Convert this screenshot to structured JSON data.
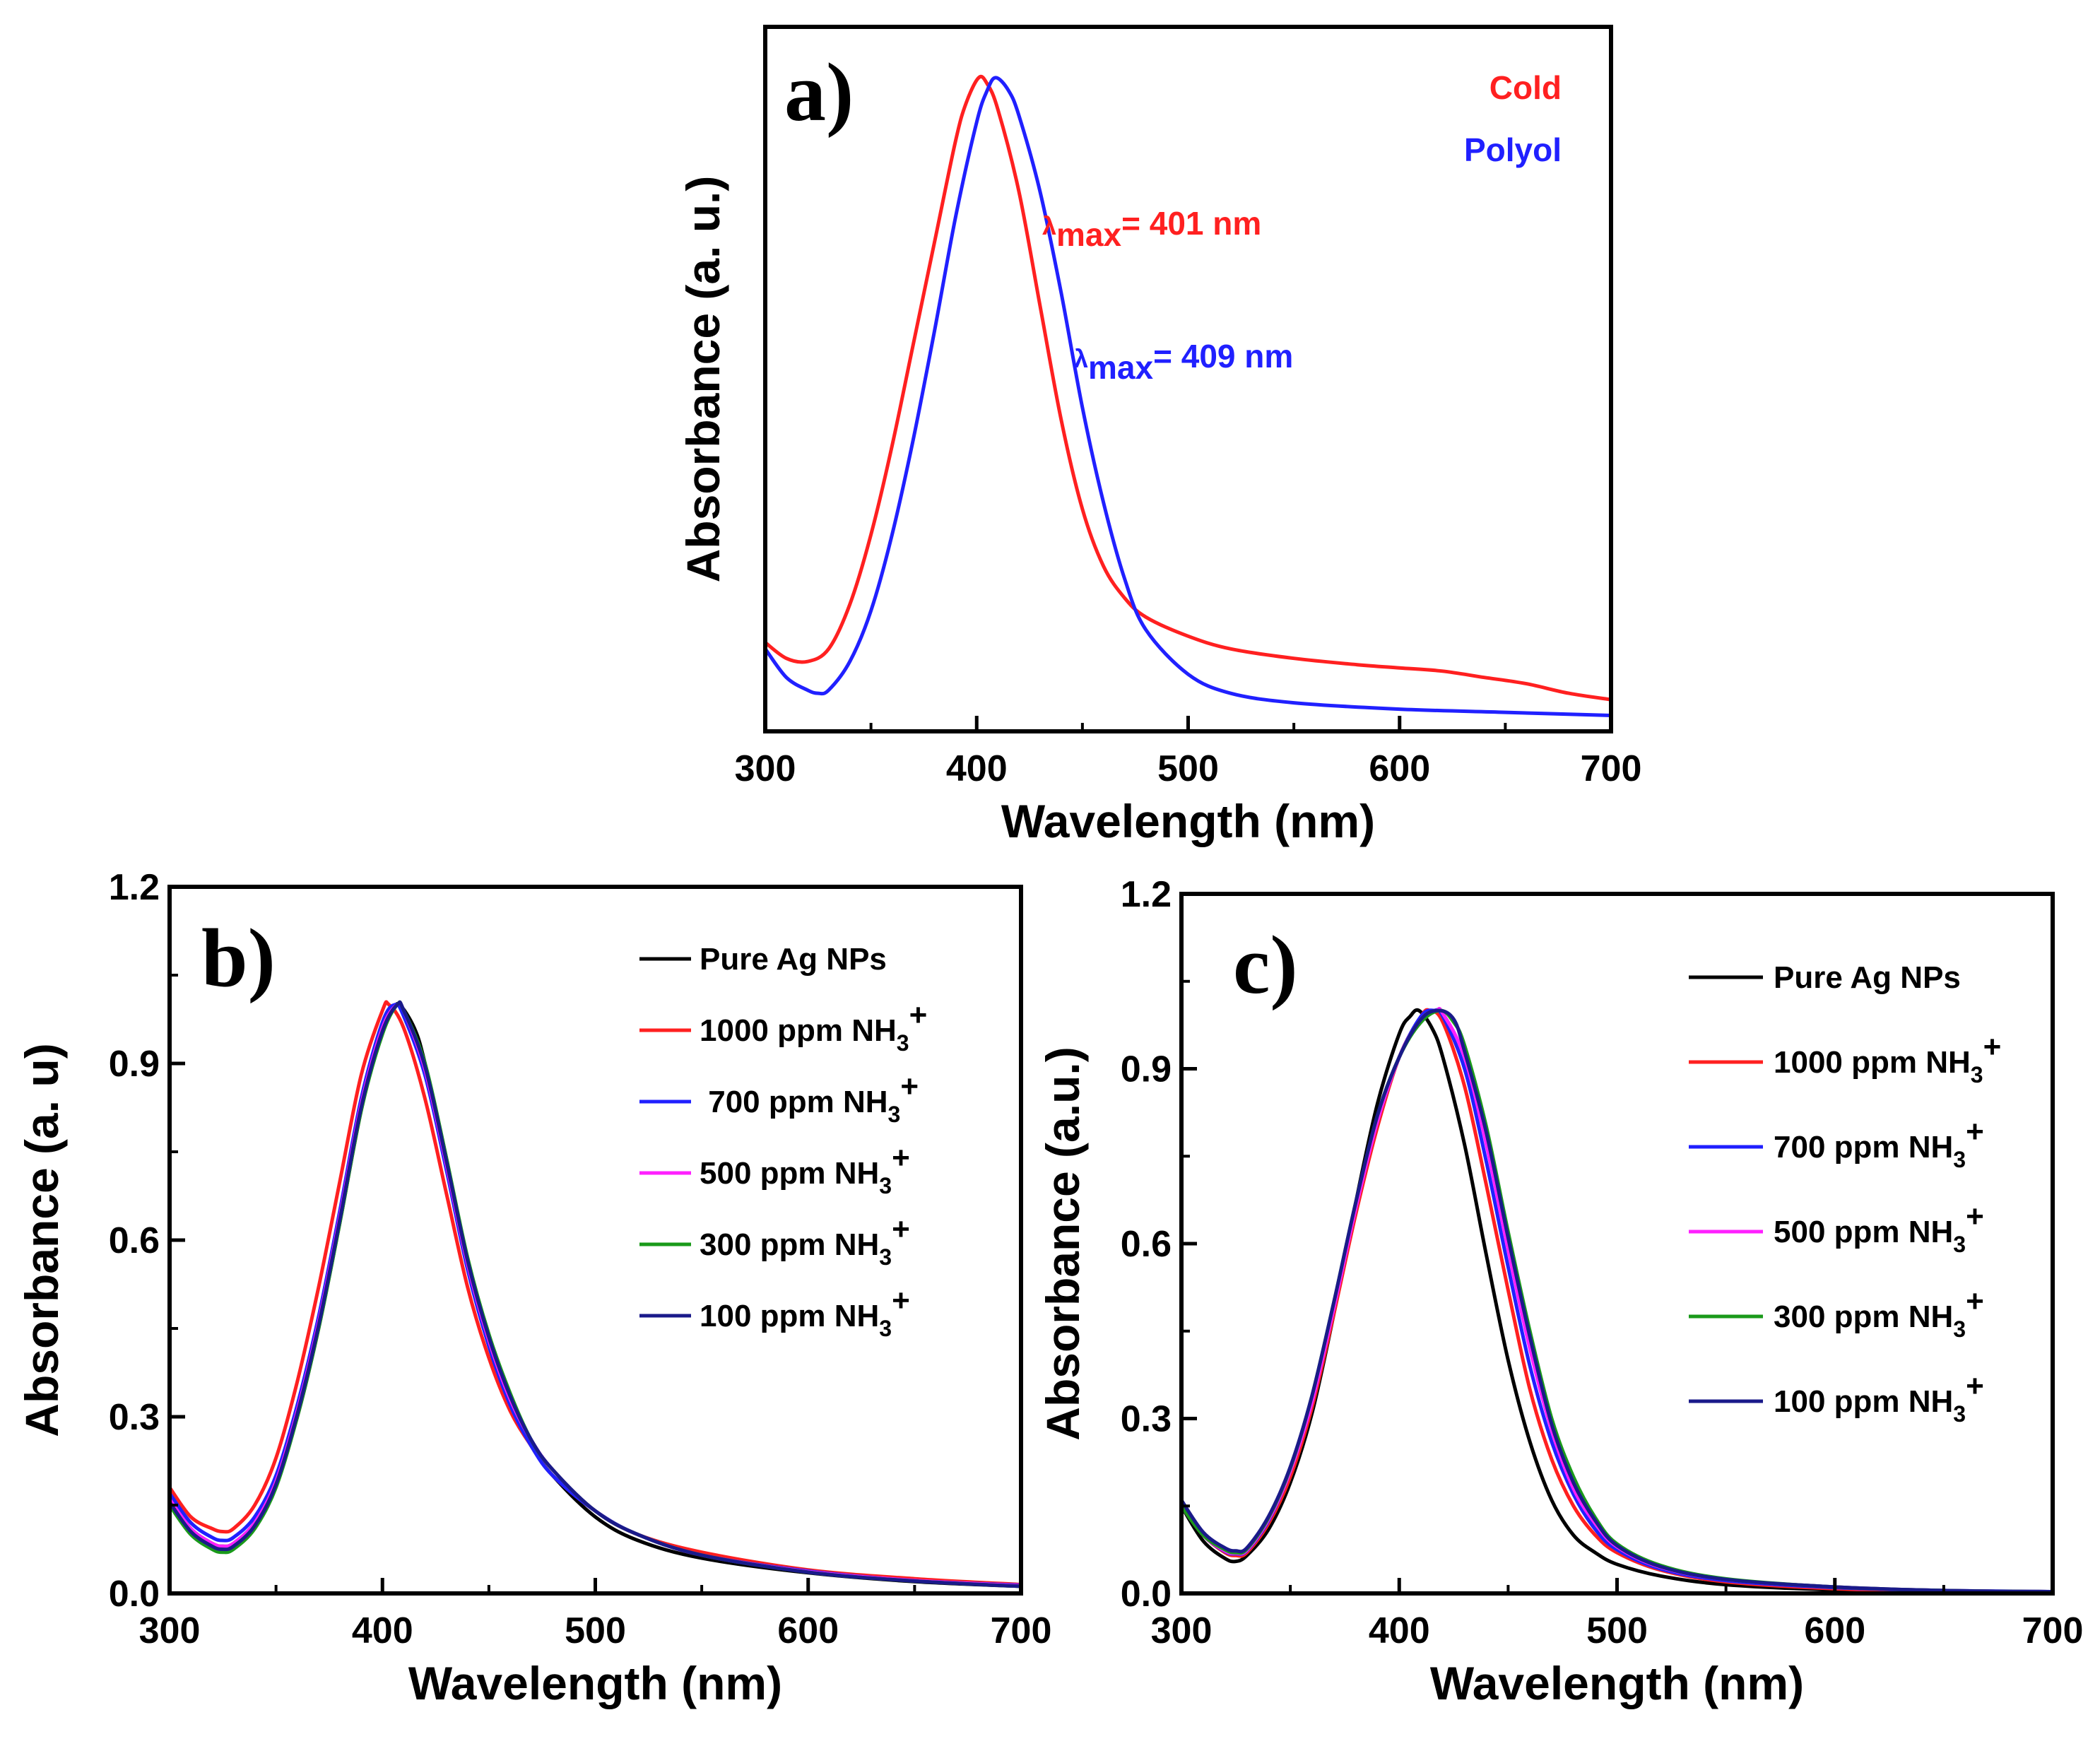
{
  "chart_data": [
    {
      "id": "a",
      "type": "line",
      "panel_label": "a)",
      "xlabel": "Wavelength (nm)",
      "ylabel": "Absorbance (a. u.)",
      "xlim": [
        300,
        700
      ],
      "ylim": [
        -0.03,
        1.08
      ],
      "xticks": [
        300,
        400,
        500,
        600,
        700
      ],
      "yticks": [],
      "legend": {
        "placement": "top-right",
        "entries": [
          {
            "label": "Cold",
            "color": "#ff2020"
          },
          {
            "label": "Polyol",
            "color": "#2020ff"
          }
        ]
      },
      "annotations": [
        {
          "prefix": "λ",
          "subscript": "max",
          "suffix": "= 401 nm",
          "color": "#ff2020"
        },
        {
          "prefix": "λ",
          "subscript": "max",
          "suffix": "= 409 nm",
          "color": "#2020ff"
        }
      ],
      "series": [
        {
          "name": "Cold",
          "color": "#ff2020",
          "x": [
            300,
            310,
            320,
            330,
            340,
            350,
            360,
            370,
            380,
            390,
            395,
            401,
            405,
            410,
            420,
            430,
            440,
            450,
            460,
            470,
            480,
            500,
            520,
            550,
            580,
            600,
            620,
            640,
            660,
            680,
            700
          ],
          "y": [
            0.11,
            0.085,
            0.08,
            0.1,
            0.17,
            0.28,
            0.42,
            0.58,
            0.74,
            0.9,
            0.96,
            1.0,
            0.99,
            0.95,
            0.82,
            0.64,
            0.46,
            0.32,
            0.23,
            0.18,
            0.15,
            0.12,
            0.1,
            0.085,
            0.075,
            0.07,
            0.065,
            0.055,
            0.045,
            0.03,
            0.02
          ]
        },
        {
          "name": "Polyol",
          "color": "#2020ff",
          "x": [
            300,
            310,
            320,
            325,
            330,
            340,
            350,
            360,
            370,
            380,
            390,
            400,
            405,
            409,
            415,
            420,
            430,
            440,
            450,
            460,
            470,
            480,
            500,
            520,
            550,
            600,
            650,
            700
          ],
          "y": [
            0.1,
            0.055,
            0.035,
            0.03,
            0.035,
            0.08,
            0.16,
            0.28,
            0.43,
            0.6,
            0.78,
            0.93,
            0.98,
            1.0,
            0.98,
            0.94,
            0.82,
            0.66,
            0.48,
            0.33,
            0.21,
            0.13,
            0.06,
            0.03,
            0.015,
            0.005,
            0.0,
            -0.005
          ]
        }
      ]
    },
    {
      "id": "b",
      "type": "line",
      "panel_label": "b)",
      "xlabel": "Wavelength (nm)",
      "ylabel": "Absorbance (a. u)",
      "xlim": [
        300,
        700
      ],
      "ylim": [
        0.0,
        1.2
      ],
      "xticks": [
        300,
        400,
        500,
        600,
        700
      ],
      "yticks": [
        "0.0",
        "0.3",
        "0.6",
        "0.9",
        "1.2"
      ],
      "legend": {
        "placement": "top-right"
      },
      "series": [
        {
          "name": "Pure Ag NPs",
          "label_text": "Pure Ag NPs",
          "label_suffix": "",
          "color": "#000000",
          "x": [
            300,
            310,
            320,
            325,
            330,
            340,
            350,
            360,
            370,
            380,
            390,
            400,
            405,
            408,
            415,
            420,
            430,
            440,
            450,
            460,
            470,
            480,
            500,
            520,
            550,
            600,
            650,
            700
          ],
          "y": [
            0.16,
            0.11,
            0.085,
            0.08,
            0.085,
            0.12,
            0.19,
            0.3,
            0.45,
            0.63,
            0.82,
            0.96,
            0.99,
            1.0,
            0.96,
            0.9,
            0.74,
            0.56,
            0.42,
            0.32,
            0.25,
            0.2,
            0.13,
            0.09,
            0.06,
            0.035,
            0.02,
            0.012
          ]
        },
        {
          "name": "1000 ppm NH3+",
          "label_text": "1000 ppm NH",
          "label_suffix": "+",
          "color": "#ff2020",
          "x": [
            300,
            310,
            320,
            325,
            330,
            340,
            350,
            360,
            370,
            380,
            390,
            400,
            403,
            410,
            420,
            430,
            440,
            450,
            460,
            470,
            480,
            500,
            520,
            550,
            600,
            650,
            700
          ],
          "y": [
            0.18,
            0.13,
            0.11,
            0.105,
            0.11,
            0.15,
            0.23,
            0.36,
            0.52,
            0.7,
            0.88,
            0.99,
            1.0,
            0.96,
            0.84,
            0.68,
            0.52,
            0.4,
            0.31,
            0.25,
            0.2,
            0.14,
            0.1,
            0.07,
            0.04,
            0.025,
            0.015
          ]
        },
        {
          "name": "700 ppm NH3+",
          "label_text": " 700 ppm NH",
          "label_suffix": "+",
          "color": "#2020ff",
          "x": [
            300,
            310,
            320,
            325,
            330,
            340,
            350,
            360,
            370,
            380,
            390,
            400,
            406,
            410,
            420,
            430,
            440,
            450,
            460,
            470,
            480,
            500,
            520,
            550,
            600,
            650,
            700
          ],
          "y": [
            0.17,
            0.12,
            0.095,
            0.09,
            0.095,
            0.13,
            0.2,
            0.32,
            0.47,
            0.65,
            0.84,
            0.97,
            1.0,
            0.98,
            0.88,
            0.72,
            0.55,
            0.42,
            0.32,
            0.25,
            0.2,
            0.14,
            0.1,
            0.065,
            0.038,
            0.022,
            0.014
          ]
        },
        {
          "name": "500 ppm NH3+",
          "label_text": "500 ppm NH",
          "label_suffix": "+",
          "color": "#ff20ff",
          "x": [
            300,
            310,
            320,
            325,
            330,
            340,
            350,
            360,
            370,
            380,
            390,
            400,
            407,
            410,
            420,
            430,
            440,
            450,
            460,
            470,
            480,
            500,
            520,
            550,
            600,
            650,
            700
          ],
          "y": [
            0.16,
            0.11,
            0.085,
            0.08,
            0.085,
            0.12,
            0.19,
            0.31,
            0.46,
            0.64,
            0.83,
            0.96,
            1.0,
            0.99,
            0.89,
            0.73,
            0.56,
            0.43,
            0.33,
            0.26,
            0.21,
            0.14,
            0.1,
            0.065,
            0.037,
            0.022,
            0.013
          ]
        },
        {
          "name": "300 ppm NH3+",
          "label_text": "300 ppm NH",
          "label_suffix": "+",
          "color": "#1a9a1a",
          "x": [
            300,
            310,
            320,
            325,
            330,
            340,
            350,
            360,
            370,
            380,
            390,
            400,
            407,
            410,
            420,
            430,
            440,
            450,
            460,
            470,
            480,
            500,
            520,
            550,
            600,
            650,
            700
          ],
          "y": [
            0.15,
            0.1,
            0.075,
            0.07,
            0.075,
            0.11,
            0.18,
            0.3,
            0.45,
            0.63,
            0.82,
            0.95,
            1.0,
            0.99,
            0.9,
            0.74,
            0.57,
            0.44,
            0.34,
            0.26,
            0.21,
            0.14,
            0.1,
            0.065,
            0.036,
            0.021,
            0.012
          ]
        },
        {
          "name": "100 ppm NH3+",
          "label_text": "100 ppm NH",
          "label_suffix": "+",
          "color": "#1a1a8a",
          "x": [
            300,
            310,
            320,
            325,
            330,
            340,
            350,
            360,
            370,
            380,
            390,
            400,
            407,
            410,
            420,
            430,
            440,
            450,
            460,
            470,
            480,
            500,
            520,
            550,
            600,
            650,
            700
          ],
          "y": [
            0.155,
            0.105,
            0.08,
            0.075,
            0.08,
            0.115,
            0.185,
            0.305,
            0.455,
            0.635,
            0.825,
            0.955,
            1.0,
            0.99,
            0.895,
            0.735,
            0.565,
            0.435,
            0.335,
            0.26,
            0.21,
            0.14,
            0.1,
            0.065,
            0.036,
            0.021,
            0.012
          ]
        }
      ]
    },
    {
      "id": "c",
      "type": "line",
      "panel_label": "c)",
      "xlabel": "Wavelength (nm)",
      "ylabel": "Absorbance (a.u.)",
      "xlim": [
        300,
        700
      ],
      "ylim": [
        0.0,
        1.2
      ],
      "xticks": [
        300,
        400,
        500,
        600,
        700
      ],
      "yticks": [
        "0.0",
        "0.3",
        "0.6",
        "0.9",
        "1.2"
      ],
      "legend": {
        "placement": "top-right"
      },
      "series": [
        {
          "name": "Pure Ag NPs",
          "label_text": "Pure Ag NPs",
          "label_suffix": "",
          "color": "#000000",
          "x": [
            300,
            310,
            320,
            325,
            330,
            340,
            350,
            360,
            370,
            380,
            390,
            400,
            405,
            409,
            415,
            420,
            430,
            440,
            450,
            460,
            470,
            480,
            490,
            500,
            520,
            550,
            600,
            650,
            700
          ],
          "y": [
            0.15,
            0.09,
            0.06,
            0.055,
            0.065,
            0.11,
            0.19,
            0.31,
            0.48,
            0.67,
            0.84,
            0.96,
            0.99,
            1.0,
            0.97,
            0.92,
            0.77,
            0.58,
            0.4,
            0.26,
            0.16,
            0.1,
            0.07,
            0.05,
            0.03,
            0.015,
            0.006,
            0.003,
            0.002
          ]
        },
        {
          "name": "1000 ppm NH3+",
          "label_text": "1000 ppm NH",
          "label_suffix": "+",
          "color": "#ff2020",
          "x": [
            300,
            310,
            320,
            325,
            330,
            340,
            350,
            360,
            370,
            380,
            390,
            400,
            410,
            414,
            420,
            430,
            440,
            450,
            460,
            470,
            480,
            490,
            500,
            520,
            550,
            600,
            650,
            700
          ],
          "y": [
            0.15,
            0.1,
            0.07,
            0.065,
            0.07,
            0.12,
            0.2,
            0.32,
            0.48,
            0.65,
            0.8,
            0.92,
            0.99,
            1.0,
            0.98,
            0.87,
            0.7,
            0.52,
            0.35,
            0.23,
            0.15,
            0.1,
            0.07,
            0.04,
            0.02,
            0.008,
            0.004,
            0.002
          ]
        },
        {
          "name": "700 ppm NH3+",
          "label_text": "700 ppm NH",
          "label_suffix": "+",
          "color": "#2020ff",
          "x": [
            300,
            310,
            320,
            325,
            330,
            340,
            350,
            360,
            370,
            380,
            390,
            400,
            410,
            416,
            420,
            430,
            440,
            450,
            460,
            470,
            480,
            490,
            500,
            520,
            550,
            600,
            650,
            700
          ],
          "y": [
            0.15,
            0.1,
            0.072,
            0.068,
            0.073,
            0.125,
            0.21,
            0.33,
            0.49,
            0.66,
            0.81,
            0.92,
            0.99,
            1.0,
            0.99,
            0.9,
            0.74,
            0.56,
            0.39,
            0.26,
            0.17,
            0.11,
            0.075,
            0.042,
            0.022,
            0.01,
            0.005,
            0.003
          ]
        },
        {
          "name": "500 ppm NH3+",
          "label_text": "500 ppm NH",
          "label_suffix": "+",
          "color": "#ff20ff",
          "x": [
            300,
            310,
            320,
            325,
            330,
            340,
            350,
            360,
            370,
            380,
            390,
            400,
            410,
            417,
            420,
            430,
            440,
            450,
            460,
            470,
            480,
            490,
            500,
            520,
            550,
            600,
            650,
            700
          ],
          "y": [
            0.15,
            0.1,
            0.073,
            0.069,
            0.074,
            0.127,
            0.21,
            0.33,
            0.49,
            0.66,
            0.81,
            0.92,
            0.985,
            1.0,
            0.995,
            0.92,
            0.77,
            0.59,
            0.42,
            0.28,
            0.18,
            0.12,
            0.08,
            0.045,
            0.024,
            0.011,
            0.005,
            0.003
          ]
        },
        {
          "name": "300 ppm NH3+",
          "label_text": "300 ppm NH",
          "label_suffix": "+",
          "color": "#1a9a1a",
          "x": [
            300,
            310,
            320,
            325,
            330,
            340,
            350,
            360,
            370,
            380,
            390,
            400,
            410,
            419,
            425,
            430,
            440,
            450,
            460,
            470,
            480,
            490,
            500,
            520,
            550,
            600,
            650,
            700
          ],
          "y": [
            0.15,
            0.1,
            0.075,
            0.07,
            0.076,
            0.13,
            0.215,
            0.34,
            0.5,
            0.67,
            0.82,
            0.92,
            0.98,
            1.0,
            0.98,
            0.94,
            0.8,
            0.62,
            0.45,
            0.3,
            0.2,
            0.13,
            0.085,
            0.048,
            0.025,
            0.011,
            0.005,
            0.003
          ]
        },
        {
          "name": "100 ppm NH3+",
          "label_text": "100 ppm NH",
          "label_suffix": "+",
          "color": "#1a1a8a",
          "x": [
            300,
            310,
            320,
            325,
            330,
            340,
            350,
            360,
            370,
            380,
            390,
            400,
            410,
            418,
            425,
            430,
            440,
            450,
            460,
            470,
            480,
            490,
            500,
            520,
            550,
            600,
            650,
            700
          ],
          "y": [
            0.16,
            0.105,
            0.078,
            0.073,
            0.078,
            0.132,
            0.217,
            0.34,
            0.5,
            0.67,
            0.82,
            0.92,
            0.985,
            1.0,
            0.985,
            0.93,
            0.79,
            0.61,
            0.44,
            0.29,
            0.19,
            0.125,
            0.082,
            0.046,
            0.024,
            0.011,
            0.005,
            0.003
          ]
        }
      ]
    }
  ]
}
